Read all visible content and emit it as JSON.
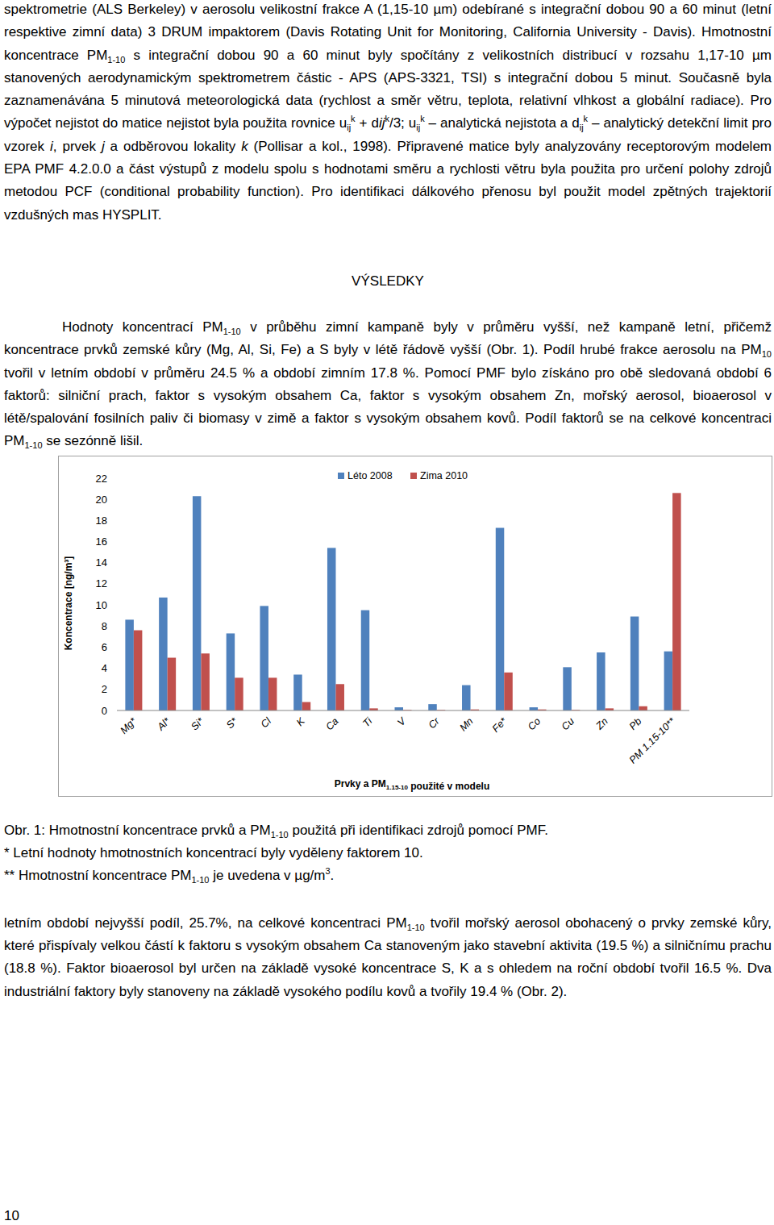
{
  "intro": [
    "spektrometrie (ALS Berkeley) v aerosolu velikostní frakce A (1,15-10 µm) odebírané s integrační dobou 90 a 60 minut (letní respektive zimní data) 3 DRUM impaktorem (Davis Rotating Unit for Monitoring, California University - Davis). Hmotnostní koncentrace PM",
    {
      "text": "1-10",
      "style": "sub"
    },
    " s integrační dobou 90 a 60 minut byly spočítány z velikostních distribucí v rozsahu 1,17-10 µm stanovených aerodynamickým spektrometrem částic - APS (APS-3321, TSI) s integrační dobou 5 minut. Současně byla zaznamenávána 5 minutová meteorologická data (rychlost a směr větru, teplota, relativní vlhkost a globální radiace). Pro výpočet nejistot do matice nejistot byla použita rovnice u",
    {
      "text": "ij",
      "style": "sub"
    },
    {
      "text": "k",
      "style": "sup"
    },
    " + d",
    {
      "text": "ij",
      "style": "i"
    },
    {
      "text": "k",
      "style": "sup"
    },
    "/3; u",
    {
      "text": "ij",
      "style": "sub"
    },
    {
      "text": "k",
      "style": "sup"
    },
    " – analytická nejistota a d",
    {
      "text": "ij",
      "style": "sub"
    },
    {
      "text": "k",
      "style": "sup"
    },
    " – analytický detekční limit pro vzorek ",
    {
      "text": "i",
      "style": "i"
    },
    ", prvek ",
    {
      "text": "j",
      "style": "i"
    },
    " a odběrovou lokality ",
    {
      "text": "k",
      "style": "i"
    },
    " (Pollisar a kol., 1998). Připravené matice byly analyzovány receptorovým modelem EPA PMF 4.2.0.0 a část výstupů z modelu spolu s hodnotami směru a rychlosti větru byla použita pro určení polohy zdrojů metodou PCF (conditional probability function). Pro identifikaci dálkového přenosu byl použit model zpětných trajektorií vzdušných mas HYSPLIT."
  ],
  "heading": "VÝSLEDKY",
  "results": [
    "Hodnoty koncentrací PM",
    {
      "text": "1-10",
      "style": "sub"
    },
    " v průběhu zimní kampaně byly v průměru vyšší, než kampaně letní, přičemž koncentrace prvků zemské kůry (Mg, Al, Si, Fe) a S byly v létě řádově vyšší (Obr. 1). Podíl hrubé frakce aerosolu na PM",
    {
      "text": "10",
      "style": "sub"
    },
    " tvořil v letním období v průměru 24.5 % a období zimním 17.8 %. Pomocí PMF bylo získáno pro obě sledovaná období 6 faktorů: silniční prach, faktor s vysokým obsahem Ca, faktor s vysokým obsahem Zn, mořský aerosol, bioaerosol v létě/spalování fosilních paliv či biomasy v zimě a faktor s vysokým obsahem kovů. Podíl faktorů se na celkové koncentraci PM",
    {
      "text": "1-10",
      "style": "sub"
    },
    " se sezónně lišil."
  ],
  "chart_data": {
    "type": "bar",
    "y_label": "Koncentrace [ng/m³]",
    "x_label": [
      "Prvky a PM",
      {
        "text": "1.15-10",
        "style": "sub"
      },
      " použité v modelu"
    ],
    "categories": [
      "Mg*",
      "Al*",
      "Si*",
      "S*",
      "Cl",
      "K",
      "Ca",
      "Ti",
      "V",
      "Cr",
      "Mn",
      "Fe*",
      "Co",
      "Cu",
      "Zn",
      "Pb",
      "PM 1.15-10**"
    ],
    "series": [
      {
        "name": "Léto 2008",
        "color": "#4f81bd",
        "values": [
          8.6,
          10.7,
          20.3,
          7.3,
          9.9,
          3.4,
          15.4,
          9.5,
          0.3,
          0.6,
          2.4,
          17.3,
          0.3,
          4.1,
          5.5,
          8.9,
          5.6
        ]
      },
      {
        "name": "Zima 2010",
        "color": "#c0504d",
        "values": [
          7.6,
          5.0,
          5.4,
          3.1,
          3.1,
          0.8,
          2.5,
          0.2,
          0.05,
          0.05,
          0.1,
          3.6,
          0.1,
          0.05,
          0.2,
          0.4,
          20.6
        ]
      }
    ],
    "ylim": [
      0,
      22
    ],
    "yticks": [
      0,
      2,
      4,
      6,
      8,
      10,
      12,
      14,
      16,
      18,
      20,
      22
    ],
    "grid": false,
    "legend": "top"
  },
  "caption": [
    [
      "Obr. 1: Hmotnostní koncentrace prvků a PM",
      {
        "text": "1-10",
        "style": "sub"
      },
      " použitá při identifikaci zdrojů pomocí PMF."
    ],
    [
      "* Letní hodnoty hmotnostních koncentrací byly vyděleny faktorem 10."
    ],
    [
      "** Hmotnostní koncentrace PM",
      {
        "text": "1-10",
        "style": "sub"
      },
      " je uvedena v µg/m",
      {
        "text": "3",
        "style": "sup"
      },
      "."
    ]
  ],
  "continuation": [
    "letním období nejvyšší podíl, 25.7%, na celkové koncentraci PM",
    {
      "text": "1-10",
      "style": "sub"
    },
    " tvořil mořský aerosol obohacený o prvky zemské kůry, které přispívaly velkou částí k faktoru s vysokým obsahem Ca stanoveným jako stavební aktivita (19.5 %) a silničnímu prachu (18.8 %). Faktor bioaerosol byl určen na základě vysoké koncentrace S, K a s ohledem na roční období tvořil 16.5 %. Dva industriální faktory byly stanoveny na základě vysokého podílu kovů a tvořily 19.4 % (Obr. 2)."
  ],
  "page_number": "10"
}
